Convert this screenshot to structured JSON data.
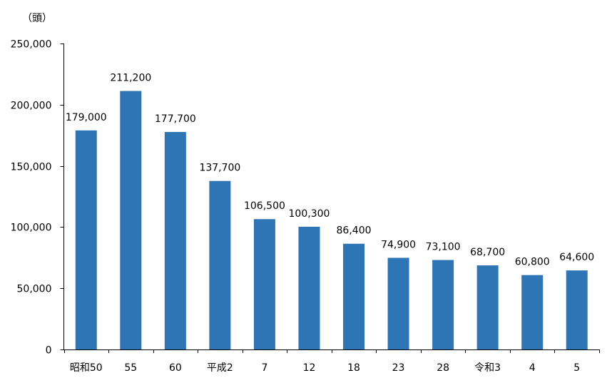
{
  "chart_data": {
    "type": "bar",
    "title": "",
    "xlabel": "",
    "ylabel": "（頭）",
    "categories": [
      "昭和50",
      "55",
      "60",
      "平成2",
      "7",
      "12",
      "18",
      "23",
      "28",
      "令和3",
      "4",
      "5"
    ],
    "values": [
      179000,
      211200,
      177700,
      137700,
      106500,
      100300,
      86400,
      74900,
      73100,
      68700,
      60800,
      64600
    ],
    "data_labels": [
      "179,000",
      "211,200",
      "177,700",
      "137,700",
      "106,500",
      "100,300",
      "86,400",
      "74,900",
      "73,100",
      "68,700",
      "60,800",
      "64,600"
    ],
    "ylim": [
      0,
      250000
    ],
    "yticks": [
      0,
      50000,
      100000,
      150000,
      200000,
      250000
    ],
    "ytick_labels": [
      "0",
      "50,000",
      "100,000",
      "150,000",
      "200,000",
      "250,000"
    ],
    "grid": false,
    "legend": "none",
    "bar_color": "#2e75b6"
  }
}
